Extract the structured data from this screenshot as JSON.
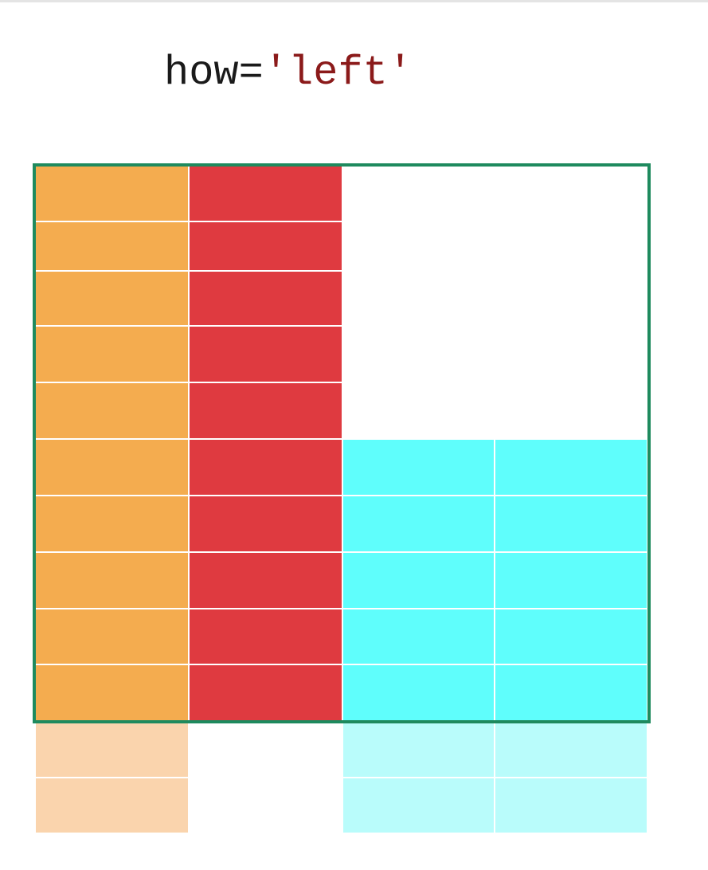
{
  "title": {
    "keyword": "how=",
    "value": "'left'"
  },
  "colors": {
    "left_table": "#f4ac4f",
    "left_table_faded": "#fad4ad",
    "left_key": "#df3a40",
    "right_table": "#5ffefc",
    "right_table_faded": "#b9fcfb",
    "result_border": "#1e8a5e",
    "grid_line": "#ffffff"
  },
  "merge": {
    "how": "left",
    "left_rows_total": 10,
    "right_rows_total": 7,
    "unmatched_left_top_rows": 5,
    "matched_rows": 5,
    "left_only_shown_below": 2,
    "right_unmatched_rows": 2
  }
}
